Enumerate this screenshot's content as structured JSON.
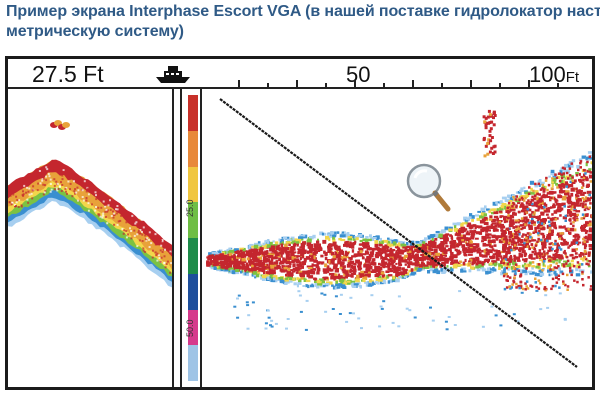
{
  "caption": {
    "line1": "Пример экрана Interphase Escort VGA (в нашей поставке гидролокатор настроен на",
    "line2": "метрическую систему)"
  },
  "screen": {
    "depth_readout": "27.5 Ft",
    "scale_mid": "50",
    "scale_max_value": "100",
    "scale_max_unit": "Ft",
    "colorbar_labels": {
      "upper": "25.0",
      "lower": "50.0"
    },
    "colorbar_colors": [
      "#c8312a",
      "#e8893a",
      "#f0c640",
      "#6fbe44",
      "#1f8c4a",
      "#1f4f9c",
      "#d63a8c",
      "#9fc4e6"
    ],
    "echo_colors": {
      "strong": "#c4262e",
      "medium": "#e8a23a",
      "weak": "#f2d64b",
      "faint": "#7cc242",
      "blue": "#3a8fd0",
      "lightblue": "#a7cff0"
    },
    "icons": {
      "boat": "boat-icon",
      "zoom": "magnifier-icon"
    }
  }
}
